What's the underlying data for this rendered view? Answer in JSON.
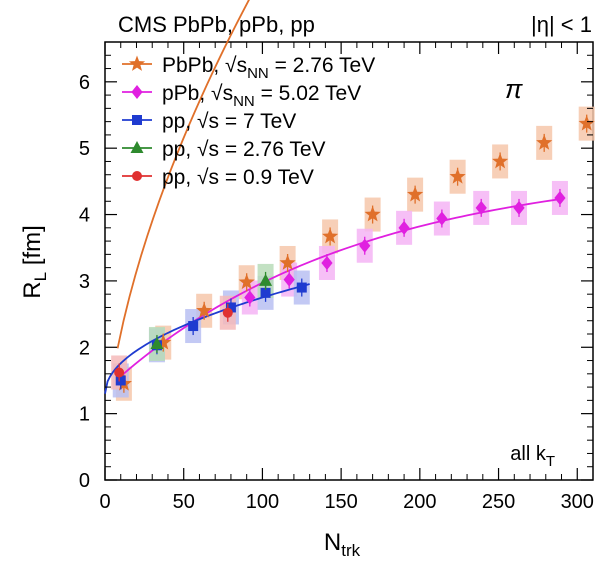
{
  "chart_data": {
    "type": "scatter",
    "header_left": "CMS PbPb, pPb, pp",
    "header_right": "|η| < 1",
    "particle_label": "π",
    "corner_note": "all k",
    "corner_note_sub": "T",
    "xlabel": "N",
    "xlabel_sub": "trk",
    "ylabel": "R",
    "ylabel_sub": "L",
    "ylabel_suffix": " [fm]",
    "xlim": [
      0,
      310
    ],
    "ylim": [
      0,
      6.6
    ],
    "x_ticks": [
      0,
      50,
      100,
      150,
      200,
      250,
      300
    ],
    "y_ticks": [
      0,
      1,
      2,
      3,
      4,
      5,
      6
    ],
    "legend_position": "top-left",
    "series": [
      {
        "name_parts": [
          "PbPb, ",
          "√s",
          "NN",
          " = 2.76 TeV"
        ],
        "color": "#e0702a",
        "band_color": "#f6c7aa",
        "marker": "star",
        "points": [
          {
            "x": 12,
            "y": 1.45
          },
          {
            "x": 37,
            "y": 2.07
          },
          {
            "x": 63,
            "y": 2.55
          },
          {
            "x": 90,
            "y": 2.98
          },
          {
            "x": 116,
            "y": 3.27
          },
          {
            "x": 143,
            "y": 3.67
          },
          {
            "x": 170,
            "y": 4.0
          },
          {
            "x": 197,
            "y": 4.3
          },
          {
            "x": 224,
            "y": 4.57
          },
          {
            "x": 251,
            "y": 4.8
          },
          {
            "x": 279,
            "y": 5.08
          },
          {
            "x": 306,
            "y": 5.37
          }
        ],
        "fit": {
          "a": 0.4,
          "b": 0.455,
          "c": 0.6,
          "x0": 8,
          "x1": 310
        }
      },
      {
        "name_parts": [
          "pPb, ",
          "√s",
          "NN",
          " = 5.02 TeV"
        ],
        "color": "#e020e0",
        "band_color": "#f4b4f4",
        "marker": "diamond",
        "points": [
          {
            "x": 92,
            "y": 2.75
          },
          {
            "x": 117,
            "y": 3.02
          },
          {
            "x": 141,
            "y": 3.27
          },
          {
            "x": 165,
            "y": 3.53
          },
          {
            "x": 190,
            "y": 3.8
          },
          {
            "x": 214,
            "y": 3.94
          },
          {
            "x": 239,
            "y": 4.1
          },
          {
            "x": 263,
            "y": 4.1
          },
          {
            "x": 289,
            "y": 4.25
          }
        ],
        "fit": {
          "a": 6.2,
          "b": -3.1,
          "c": 0.0,
          "x0": 8,
          "x1": 290,
          "form": "sat"
        }
      },
      {
        "name_parts": [
          "pp, ",
          "√s",
          "",
          " = 7 TeV"
        ],
        "color": "#1f3bd0",
        "band_color": "#b8c0f2",
        "marker": "square",
        "points": [
          {
            "x": 10,
            "y": 1.5
          },
          {
            "x": 33,
            "y": 2.03
          },
          {
            "x": 56,
            "y": 2.32
          },
          {
            "x": 80,
            "y": 2.6
          },
          {
            "x": 102,
            "y": 2.82
          },
          {
            "x": 125,
            "y": 2.9
          }
        ],
        "fit": {
          "a": 1.3,
          "b": 0.145,
          "c": 0.0,
          "x0": 0,
          "x1": 130,
          "form": "sqrt"
        }
      },
      {
        "name_parts": [
          "pp, ",
          "√s",
          "",
          " = 2.76 TeV"
        ],
        "color": "#2e8a2e",
        "band_color": "#b8dcb8",
        "marker": "triangle",
        "points": [
          {
            "x": 33,
            "y": 2.05
          },
          {
            "x": 102,
            "y": 3.0
          }
        ]
      },
      {
        "name_parts": [
          "pp, ",
          "√s",
          "",
          " = 0.9 TeV"
        ],
        "color": "#e03030",
        "band_color": "#f4baba",
        "marker": "circle",
        "points": [
          {
            "x": 9,
            "y": 1.62
          },
          {
            "x": 78,
            "y": 2.52
          }
        ]
      }
    ]
  }
}
